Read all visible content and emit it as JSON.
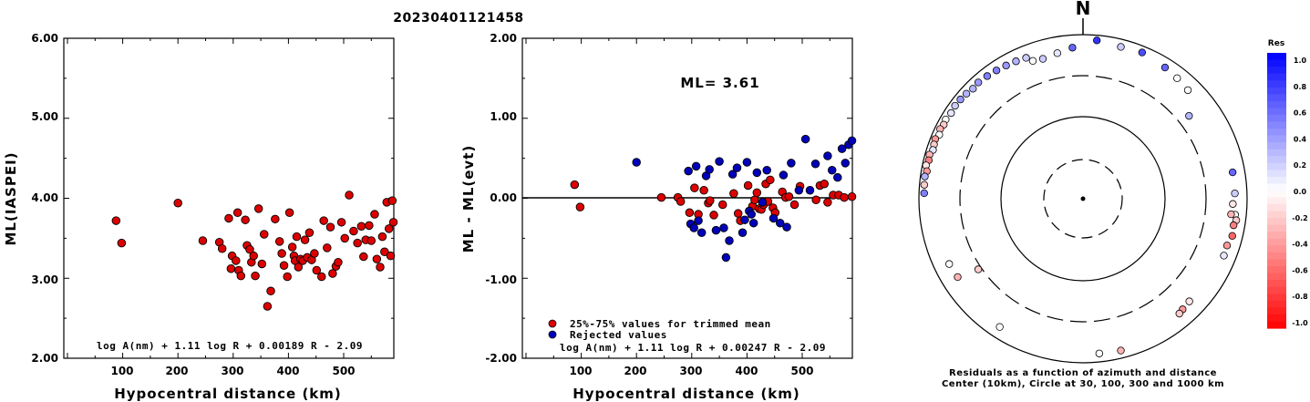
{
  "event_id": "20230401121458",
  "colors": {
    "point_fill": "#dd0000",
    "rejected_fill": "#0000bb",
    "res_positive": "#0000ff",
    "res_negative": "#ff0000"
  },
  "chart_data": [
    {
      "type": "scatter",
      "title": "20230401121458",
      "xlabel": "Hypocentral distance (km)",
      "ylabel": "ML(IASPEI)",
      "xlim": [
        0,
        590
      ],
      "ylim": [
        2.0,
        6.0
      ],
      "x_ticks": [
        "100",
        "200",
        "300",
        "400",
        "500"
      ],
      "y_ticks": [
        "2.00",
        "3.00",
        "4.00",
        "5.00",
        "6.00"
      ],
      "formula": "log A(nm) + 1.11 log R + 0.00189 R - 2.09",
      "series": [
        {
          "points": [
            [
              88,
              3.72
            ],
            [
              98,
              3.44
            ],
            [
              200,
              3.94
            ],
            [
              245,
              3.47
            ],
            [
              275,
              3.45
            ],
            [
              280,
              3.37
            ],
            [
              292,
              3.75
            ],
            [
              296,
              3.12
            ],
            [
              298,
              3.28
            ],
            [
              305,
              3.22
            ],
            [
              308,
              3.82
            ],
            [
              310,
              3.1
            ],
            [
              314,
              3.03
            ],
            [
              322,
              3.73
            ],
            [
              325,
              3.41
            ],
            [
              330,
              3.36
            ],
            [
              333,
              3.2
            ],
            [
              337,
              3.28
            ],
            [
              340,
              3.03
            ],
            [
              346,
              3.87
            ],
            [
              352,
              3.18
            ],
            [
              356,
              3.55
            ],
            [
              362,
              2.65
            ],
            [
              368,
              2.84
            ],
            [
              376,
              3.74
            ],
            [
              384,
              3.46
            ],
            [
              388,
              3.31
            ],
            [
              392,
              3.16
            ],
            [
              398,
              3.02
            ],
            [
              402,
              3.82
            ],
            [
              407,
              3.39
            ],
            [
              410,
              3.28
            ],
            [
              412,
              3.22
            ],
            [
              415,
              3.52
            ],
            [
              418,
              3.14
            ],
            [
              422,
              3.24
            ],
            [
              426,
              3.22
            ],
            [
              430,
              3.48
            ],
            [
              434,
              3.26
            ],
            [
              438,
              3.57
            ],
            [
              442,
              3.23
            ],
            [
              447,
              3.31
            ],
            [
              451,
              3.1
            ],
            [
              460,
              3.02
            ],
            [
              464,
              3.72
            ],
            [
              470,
              3.38
            ],
            [
              476,
              3.64
            ],
            [
              480,
              3.06
            ],
            [
              486,
              3.15
            ],
            [
              490,
              3.2
            ],
            [
              496,
              3.7
            ],
            [
              502,
              3.5
            ],
            [
              510,
              4.04
            ],
            [
              518,
              3.59
            ],
            [
              525,
              3.44
            ],
            [
              532,
              3.65
            ],
            [
              536,
              3.27
            ],
            [
              540,
              3.48
            ],
            [
              546,
              3.66
            ],
            [
              550,
              3.47
            ],
            [
              556,
              3.8
            ],
            [
              560,
              3.24
            ],
            [
              566,
              3.14
            ],
            [
              570,
              3.52
            ],
            [
              574,
              3.33
            ],
            [
              578,
              3.95
            ],
            [
              582,
              3.62
            ],
            [
              585,
              3.28
            ],
            [
              588,
              3.97
            ],
            [
              590,
              3.7
            ],
            [
              592,
              3.43
            ]
          ]
        }
      ]
    },
    {
      "type": "scatter",
      "xlabel": "Hypocentral distance (km)",
      "ylabel": "ML - ML(evt)",
      "xlim": [
        0,
        590
      ],
      "ylim": [
        -2.0,
        2.0
      ],
      "x_ticks": [
        "100",
        "200",
        "300",
        "400",
        "500"
      ],
      "y_ticks": [
        "-2.00",
        "-1.00",
        "0.00",
        "1.00",
        "2.00"
      ],
      "annotation": "ML= 3.61",
      "formula": "log A(nm) + 1.11 log R + 0.00247 R - 2.09",
      "series": [
        {
          "name": "25%-75% values for trimmed mean",
          "points": [
            [
              88,
              0.17
            ],
            [
              98,
              -0.11
            ],
            [
              245,
              0.01
            ],
            [
              275,
              0.01
            ],
            [
              280,
              -0.04
            ],
            [
              296,
              -0.18
            ],
            [
              305,
              0.13
            ],
            [
              312,
              -0.2
            ],
            [
              322,
              0.1
            ],
            [
              330,
              -0.06
            ],
            [
              333,
              -0.03
            ],
            [
              340,
              -0.21
            ],
            [
              356,
              -0.08
            ],
            [
              376,
              0.06
            ],
            [
              384,
              -0.19
            ],
            [
              388,
              -0.28
            ],
            [
              402,
              0.16
            ],
            [
              410,
              -0.1
            ],
            [
              414,
              -0.02
            ],
            [
              418,
              0.07
            ],
            [
              422,
              -0.13
            ],
            [
              426,
              -0.14
            ],
            [
              430,
              -0.08
            ],
            [
              434,
              0.18
            ],
            [
              438,
              -0.04
            ],
            [
              442,
              0.23
            ],
            [
              447,
              -0.12
            ],
            [
              451,
              -0.18
            ],
            [
              464,
              0.08
            ],
            [
              470,
              0.01
            ],
            [
              476,
              0.02
            ],
            [
              486,
              -0.08
            ],
            [
              496,
              0.15
            ],
            [
              525,
              -0.02
            ],
            [
              532,
              0.16
            ],
            [
              540,
              0.18
            ],
            [
              546,
              -0.05
            ],
            [
              556,
              0.04
            ],
            [
              566,
              0.04
            ],
            [
              576,
              0.01
            ],
            [
              590,
              0.02
            ]
          ]
        },
        {
          "name": "Rejected values",
          "points": [
            [
              200,
              0.45
            ],
            [
              294,
              0.34
            ],
            [
              298,
              -0.32
            ],
            [
              304,
              -0.37
            ],
            [
              308,
              0.4
            ],
            [
              312,
              -0.28
            ],
            [
              318,
              -0.43
            ],
            [
              326,
              0.28
            ],
            [
              332,
              0.36
            ],
            [
              344,
              -0.4
            ],
            [
              350,
              0.46
            ],
            [
              358,
              -0.37
            ],
            [
              362,
              -0.74
            ],
            [
              368,
              -0.53
            ],
            [
              374,
              0.3
            ],
            [
              382,
              0.38
            ],
            [
              392,
              -0.43
            ],
            [
              396,
              -0.27
            ],
            [
              400,
              0.45
            ],
            [
              404,
              -0.16
            ],
            [
              408,
              -0.2
            ],
            [
              412,
              -0.31
            ],
            [
              418,
              0.32
            ],
            [
              428,
              -0.05
            ],
            [
              436,
              0.35
            ],
            [
              448,
              -0.25
            ],
            [
              460,
              -0.31
            ],
            [
              466,
              0.29
            ],
            [
              472,
              -0.36
            ],
            [
              480,
              0.44
            ],
            [
              494,
              0.1
            ],
            [
              506,
              0.74
            ],
            [
              514,
              0.1
            ],
            [
              524,
              0.43
            ],
            [
              546,
              0.53
            ],
            [
              554,
              0.35
            ],
            [
              564,
              0.26
            ],
            [
              572,
              0.62
            ],
            [
              578,
              0.44
            ],
            [
              584,
              0.67
            ],
            [
              590,
              0.72
            ]
          ]
        }
      ]
    },
    {
      "type": "scatter",
      "subtype": "polar-residuals",
      "north_label": "N",
      "caption_line1": "Residuals as a function of azimuth and distance",
      "caption_line2": "Center (10km), Circle at 30, 100, 300 and 1000 km",
      "colorbar_title": "Res",
      "colorbar_ticks": [
        "1.0",
        "0.8",
        "0.6",
        "0.4",
        "0.2",
        "0.0",
        "-0.2",
        "-0.4",
        "-0.6",
        "-0.8",
        "-1.0"
      ],
      "rings_km": [
        30,
        100,
        300,
        1000
      ],
      "points_az_dist_res": [
        [
          338,
          700,
          0.2
        ],
        [
          334,
          720,
          0.3
        ],
        [
          330,
          740,
          0.4
        ],
        [
          326,
          760,
          0.5
        ],
        [
          322,
          780,
          0.5
        ],
        [
          318,
          800,
          0.4
        ],
        [
          315,
          780,
          0.3
        ],
        [
          312,
          810,
          0.3
        ],
        [
          309,
          830,
          0.4
        ],
        [
          306,
          840,
          0.2
        ],
        [
          303,
          820,
          0.1
        ],
        [
          300,
          850,
          0.0
        ],
        [
          298,
          830,
          -0.2
        ],
        [
          296,
          860,
          -0.3
        ],
        [
          294,
          820,
          0.0
        ],
        [
          292,
          870,
          -0.4
        ],
        [
          290,
          850,
          -0.2
        ],
        [
          288,
          830,
          0.1
        ],
        [
          286,
          880,
          -0.3
        ],
        [
          284,
          860,
          -0.5
        ],
        [
          282,
          900,
          -0.1
        ],
        [
          280,
          850,
          -0.4
        ],
        [
          278,
          880,
          0.3
        ],
        [
          275,
          870,
          -0.2
        ],
        [
          272,
          860,
          0.5
        ],
        [
          340,
          600,
          0.0
        ],
        [
          344,
          580,
          0.2
        ],
        [
          350,
          620,
          0.1
        ],
        [
          356,
          690,
          0.6
        ],
        [
          5,
          860,
          0.8
        ],
        [
          14,
          800,
          0.2
        ],
        [
          22,
          830,
          0.7
        ],
        [
          32,
          760,
          0.6
        ],
        [
          38,
          720,
          0.0
        ],
        [
          44,
          680,
          0.0
        ],
        [
          52,
          420,
          0.3
        ],
        [
          80,
          700,
          0.6
        ],
        [
          96,
          720,
          0.0
        ],
        [
          98,
          760,
          -0.2
        ],
        [
          100,
          720,
          -0.5
        ],
        [
          104,
          740,
          -0.6
        ],
        [
          108,
          690,
          -0.4
        ],
        [
          112,
          700,
          0.1
        ],
        [
          236,
          330,
          -0.2
        ],
        [
          238,
          620,
          -0.3
        ],
        [
          244,
          640,
          0.0
        ],
        [
          134,
          620,
          -0.1
        ],
        [
          138,
          640,
          -0.4
        ],
        [
          140,
          660,
          -0.2
        ],
        [
          166,
          800,
          -0.3
        ],
        [
          174,
          780,
          0.0
        ],
        [
          213,
          720,
          0.0
        ],
        [
          96,
          640,
          -0.3
        ],
        [
          92,
          660,
          -0.1
        ],
        [
          88,
          700,
          0.2
        ]
      ]
    }
  ]
}
